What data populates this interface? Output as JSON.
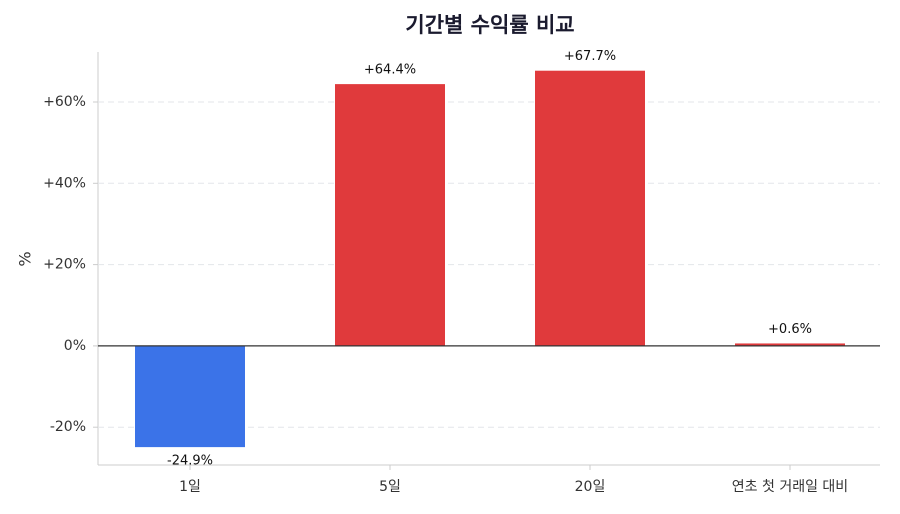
{
  "chart_data": {
    "type": "bar",
    "title": "기간별 수익률 비교",
    "y_label": "%",
    "categories": [
      "1일",
      "5일",
      "20일",
      "연초 첫 거래일 대비"
    ],
    "values": [
      -24.9,
      64.4,
      67.7,
      0.6
    ],
    "value_labels": [
      "-24.9%",
      "+64.4%",
      "+67.7%",
      "+0.6%"
    ],
    "colors": [
      "#3b73e8",
      "#e03a3c",
      "#e03a3c",
      "#e03a3c"
    ],
    "ylim": [
      -29.3,
      72.3
    ],
    "yticks": [
      {
        "value": -20,
        "label": "-20%"
      },
      {
        "value": 0,
        "label": "0%"
      },
      {
        "value": 20,
        "label": "+20%"
      },
      {
        "value": 40,
        "label": "+40%"
      },
      {
        "value": 60,
        "label": "+60%"
      }
    ],
    "grid": true
  }
}
